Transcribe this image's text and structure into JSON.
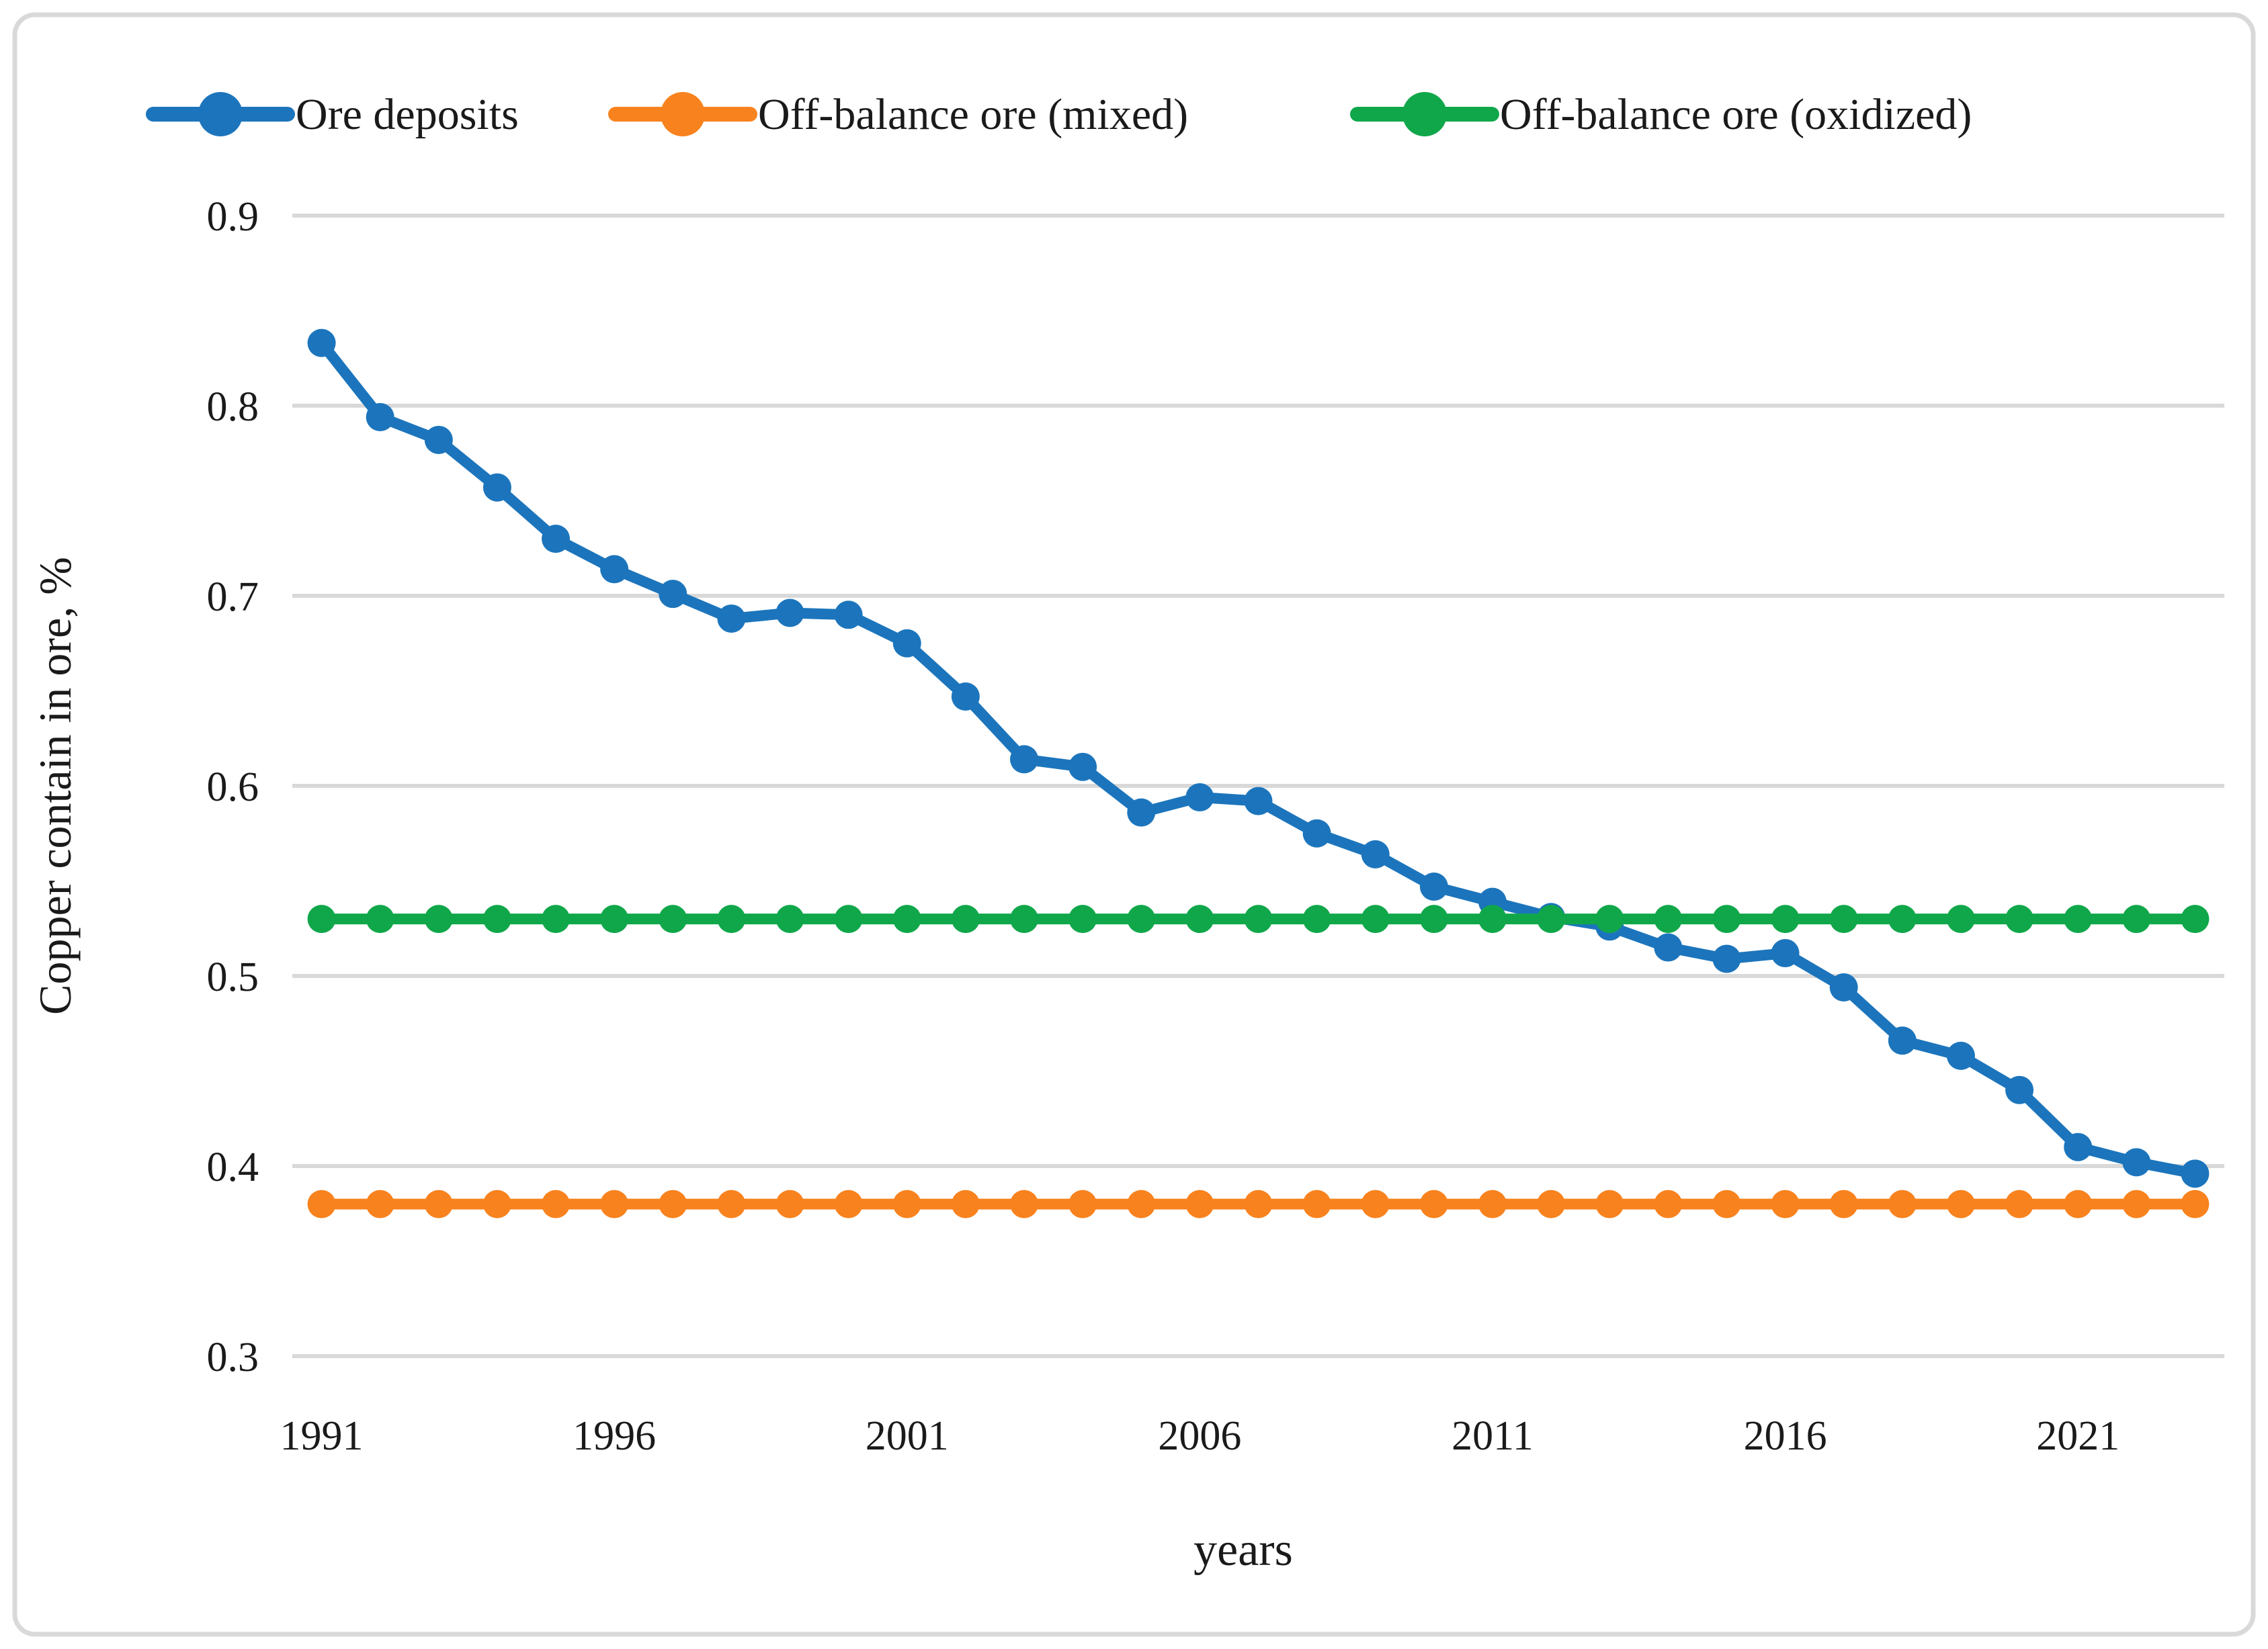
{
  "chart_data": {
    "type": "line",
    "title": "",
    "xlabel": "years",
    "ylabel": "Copper contain in ore, %",
    "x": [
      1991,
      1992,
      1993,
      1994,
      1995,
      1996,
      1997,
      1998,
      1999,
      2000,
      2001,
      2002,
      2003,
      2004,
      2005,
      2006,
      2007,
      2008,
      2009,
      2010,
      2011,
      2012,
      2013,
      2014,
      2015,
      2016,
      2017,
      2018,
      2019,
      2020,
      2021,
      2022,
      2023
    ],
    "x_ticks": [
      1991,
      1996,
      2001,
      2006,
      2011,
      2016,
      2021
    ],
    "y_ticks": [
      "0.9",
      "0.8",
      "0.7",
      "0.6",
      "0.5",
      "0.4",
      "0.3"
    ],
    "ylim": [
      0.3,
      0.9
    ],
    "grid": "horizontal",
    "legend_position": "top",
    "series": [
      {
        "name": "Ore deposits",
        "color": "#1C75BC",
        "values": [
          0.833,
          0.794,
          0.782,
          0.757,
          0.73,
          0.714,
          0.701,
          0.688,
          0.691,
          0.69,
          0.675,
          0.647,
          0.614,
          0.61,
          0.586,
          0.594,
          0.592,
          0.575,
          0.564,
          0.547,
          0.539,
          0.531,
          0.526,
          0.515,
          0.509,
          0.512,
          0.494,
          0.466,
          0.458,
          0.44,
          0.41,
          0.402,
          0.396
        ]
      },
      {
        "name": "Off-balance ore (mixed)",
        "color": "#F8821E",
        "values": [
          0.38,
          0.38,
          0.38,
          0.38,
          0.38,
          0.38,
          0.38,
          0.38,
          0.38,
          0.38,
          0.38,
          0.38,
          0.38,
          0.38,
          0.38,
          0.38,
          0.38,
          0.38,
          0.38,
          0.38,
          0.38,
          0.38,
          0.38,
          0.38,
          0.38,
          0.38,
          0.38,
          0.38,
          0.38,
          0.38,
          0.38,
          0.38,
          0.38
        ]
      },
      {
        "name": "Off-balance ore (oxidized)",
        "color": "#10A74A",
        "values": [
          0.53,
          0.53,
          0.53,
          0.53,
          0.53,
          0.53,
          0.53,
          0.53,
          0.53,
          0.53,
          0.53,
          0.53,
          0.53,
          0.53,
          0.53,
          0.53,
          0.53,
          0.53,
          0.53,
          0.53,
          0.53,
          0.53,
          0.53,
          0.53,
          0.53,
          0.53,
          0.53,
          0.53,
          0.53,
          0.53,
          0.53,
          0.53,
          0.53
        ]
      }
    ]
  },
  "styles": {
    "grid_color": "#D9D9D9",
    "border_color": "#D9D9D9",
    "text_color": "#1A1A1A",
    "background": "#FFFFFF"
  }
}
